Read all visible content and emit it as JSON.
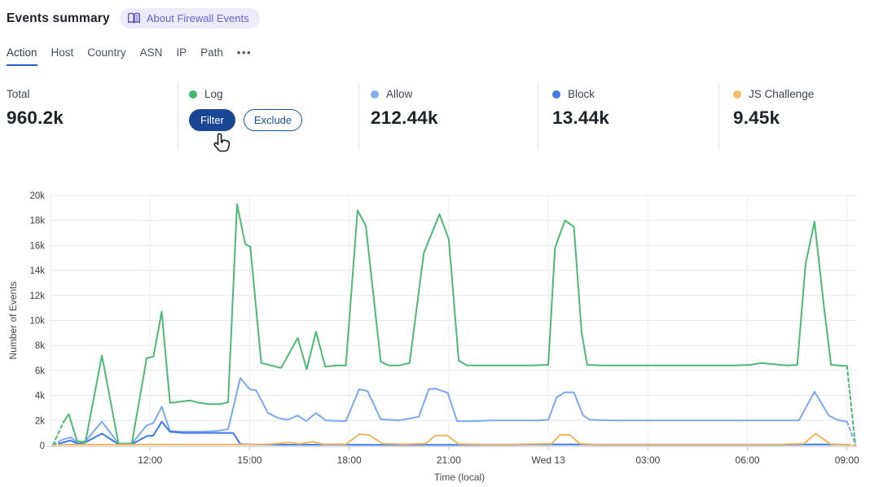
{
  "header": {
    "title": "Events summary",
    "badge_label": "About Firewall Events"
  },
  "tabs": {
    "items": [
      {
        "label": "Action",
        "active": true
      },
      {
        "label": "Host",
        "active": false
      },
      {
        "label": "Country",
        "active": false
      },
      {
        "label": "ASN",
        "active": false
      },
      {
        "label": "IP",
        "active": false
      },
      {
        "label": "Path",
        "active": false
      }
    ],
    "more_label": "•••"
  },
  "stats": {
    "cards": [
      {
        "label": "Total",
        "value": "960.2k"
      },
      {
        "label": "Log",
        "dot_color": "#3fba6d",
        "actions": {
          "filter": "Filter",
          "exclude": "Exclude"
        }
      },
      {
        "label": "Allow",
        "dot_color": "#85aef3",
        "value": "212.44k"
      },
      {
        "label": "Block",
        "dot_color": "#3d7be8",
        "value": "13.44k"
      },
      {
        "label": "JS Challenge",
        "dot_color": "#f3bc65",
        "value": "9.45k"
      }
    ]
  },
  "chart_data": {
    "type": "line",
    "title": "",
    "xlabel": "Time (local)",
    "ylabel": "Number of Events",
    "xlim": [
      9,
      33.3
    ],
    "ylim": [
      0,
      20
    ],
    "grid": true,
    "legend_position": "in-stat-cards",
    "y_ticks": [
      {
        "value": 0,
        "label": "0"
      },
      {
        "value": 2,
        "label": "2k"
      },
      {
        "value": 4,
        "label": "4k"
      },
      {
        "value": 6,
        "label": "6k"
      },
      {
        "value": 8,
        "label": "8k"
      },
      {
        "value": 10,
        "label": "10k"
      },
      {
        "value": 12,
        "label": "12k"
      },
      {
        "value": 14,
        "label": "14k"
      },
      {
        "value": 16,
        "label": "16k"
      },
      {
        "value": 18,
        "label": "18k"
      },
      {
        "value": 20,
        "label": "20k"
      }
    ],
    "x_ticks": [
      {
        "hour": 12,
        "label": "12:00"
      },
      {
        "hour": 15,
        "label": "15:00"
      },
      {
        "hour": 18,
        "label": "18:00"
      },
      {
        "hour": 21,
        "label": "21:00"
      },
      {
        "hour": 24,
        "label": "Wed 13"
      },
      {
        "hour": 27,
        "label": "03:00"
      },
      {
        "hour": 30,
        "label": "06:00"
      },
      {
        "hour": 33,
        "label": "09:00"
      }
    ],
    "units": "thousands of events",
    "series": [
      {
        "name": "Allow",
        "color": "#7aa8f4",
        "dashed_lead": [
          [
            9.07,
            0.05
          ],
          [
            9.35,
            0.45
          ]
        ],
        "points": [
          [
            9.35,
            0.45
          ],
          [
            9.6,
            0.65
          ],
          [
            9.85,
            0.2
          ],
          [
            10.05,
            0.35
          ],
          [
            10.55,
            1.9
          ],
          [
            11.05,
            0.15
          ],
          [
            11.45,
            0.15
          ],
          [
            11.9,
            1.6
          ],
          [
            12.1,
            1.8
          ],
          [
            12.35,
            3.1
          ],
          [
            12.6,
            1.15
          ],
          [
            13.0,
            1.1
          ],
          [
            13.5,
            1.1
          ],
          [
            14.0,
            1.15
          ],
          [
            14.35,
            1.3
          ],
          [
            14.72,
            5.4
          ],
          [
            15.0,
            4.5
          ],
          [
            15.2,
            4.4
          ],
          [
            15.55,
            2.6
          ],
          [
            15.85,
            2.2
          ],
          [
            16.15,
            2.05
          ],
          [
            16.45,
            2.4
          ],
          [
            16.7,
            1.95
          ],
          [
            17.0,
            2.6
          ],
          [
            17.3,
            2.0
          ],
          [
            17.9,
            1.95
          ],
          [
            18.3,
            4.5
          ],
          [
            18.55,
            4.35
          ],
          [
            18.95,
            2.1
          ],
          [
            19.5,
            2.0
          ],
          [
            20.1,
            2.3
          ],
          [
            20.4,
            4.5
          ],
          [
            20.6,
            4.55
          ],
          [
            20.97,
            4.2
          ],
          [
            21.25,
            1.95
          ],
          [
            21.7,
            1.95
          ],
          [
            22.3,
            2.0
          ],
          [
            23.0,
            2.0
          ],
          [
            23.7,
            2.0
          ],
          [
            24.0,
            2.05
          ],
          [
            24.25,
            3.85
          ],
          [
            24.5,
            4.25
          ],
          [
            24.77,
            4.25
          ],
          [
            25.05,
            2.4
          ],
          [
            25.25,
            2.05
          ],
          [
            26.0,
            2.0
          ],
          [
            27.0,
            2.0
          ],
          [
            28.0,
            2.0
          ],
          [
            29.0,
            2.0
          ],
          [
            30.0,
            2.0
          ],
          [
            31.0,
            2.0
          ],
          [
            31.55,
            2.0
          ],
          [
            32.02,
            4.3
          ],
          [
            32.45,
            2.4
          ],
          [
            32.7,
            2.05
          ],
          [
            33.0,
            1.9
          ]
        ],
        "dashed_tail": [
          [
            33.0,
            1.9
          ],
          [
            33.26,
            0.05
          ]
        ]
      },
      {
        "name": "Block",
        "color": "#3d7ce8",
        "dashed_lead": [
          [
            9.07,
            0.02
          ],
          [
            9.35,
            0.22
          ]
        ],
        "points": [
          [
            9.35,
            0.22
          ],
          [
            9.6,
            0.4
          ],
          [
            9.85,
            0.12
          ],
          [
            10.05,
            0.25
          ],
          [
            10.55,
            0.95
          ],
          [
            11.05,
            0.1
          ],
          [
            11.45,
            0.1
          ],
          [
            11.9,
            0.75
          ],
          [
            12.1,
            0.8
          ],
          [
            12.35,
            1.9
          ],
          [
            12.6,
            1.1
          ],
          [
            13.0,
            1.0
          ],
          [
            13.5,
            1.0
          ],
          [
            14.0,
            1.0
          ],
          [
            14.5,
            1.0
          ],
          [
            14.72,
            0.12
          ],
          [
            15.2,
            0.07
          ],
          [
            16.0,
            0.06
          ],
          [
            17.0,
            0.06
          ],
          [
            18.0,
            0.06
          ],
          [
            19.0,
            0.05
          ],
          [
            20.0,
            0.05
          ],
          [
            21.0,
            0.05
          ],
          [
            22.0,
            0.05
          ],
          [
            23.0,
            0.05
          ],
          [
            24.1,
            0.08
          ],
          [
            25.0,
            0.08
          ],
          [
            25.5,
            0.05
          ],
          [
            26.5,
            0.05
          ],
          [
            28.0,
            0.05
          ],
          [
            29.5,
            0.05
          ],
          [
            31.0,
            0.05
          ],
          [
            31.8,
            0.08
          ],
          [
            32.5,
            0.08
          ],
          [
            33.0,
            0.05
          ]
        ],
        "dashed_tail": [
          [
            33.0,
            0.05
          ],
          [
            33.24,
            0.02
          ]
        ]
      },
      {
        "name": "Log",
        "color": "#4aba74",
        "dashed_lead": [
          [
            9.07,
            0.05
          ],
          [
            9.4,
            1.9
          ]
        ],
        "points": [
          [
            9.4,
            1.9
          ],
          [
            9.55,
            2.5
          ],
          [
            9.8,
            0.35
          ],
          [
            10.05,
            0.25
          ],
          [
            10.55,
            7.2
          ],
          [
            11.05,
            0.15
          ],
          [
            11.45,
            0.15
          ],
          [
            11.9,
            7.0
          ],
          [
            12.1,
            7.1
          ],
          [
            12.35,
            10.7
          ],
          [
            12.6,
            3.4
          ],
          [
            12.9,
            3.5
          ],
          [
            13.2,
            3.6
          ],
          [
            13.5,
            3.4
          ],
          [
            13.8,
            3.3
          ],
          [
            14.1,
            3.3
          ],
          [
            14.35,
            3.45
          ],
          [
            14.62,
            19.3
          ],
          [
            14.87,
            16.1
          ],
          [
            15.02,
            15.9
          ],
          [
            15.35,
            6.6
          ],
          [
            15.95,
            6.2
          ],
          [
            16.45,
            8.6
          ],
          [
            16.72,
            6.1
          ],
          [
            17.0,
            9.1
          ],
          [
            17.28,
            6.3
          ],
          [
            17.6,
            6.4
          ],
          [
            17.9,
            6.4
          ],
          [
            18.25,
            18.8
          ],
          [
            18.5,
            17.6
          ],
          [
            18.95,
            6.7
          ],
          [
            19.2,
            6.4
          ],
          [
            19.5,
            6.4
          ],
          [
            19.82,
            6.6
          ],
          [
            20.25,
            15.4
          ],
          [
            20.72,
            18.5
          ],
          [
            21.0,
            16.5
          ],
          [
            21.3,
            6.8
          ],
          [
            21.55,
            6.4
          ],
          [
            22.0,
            6.4
          ],
          [
            22.5,
            6.4
          ],
          [
            23.0,
            6.4
          ],
          [
            23.5,
            6.4
          ],
          [
            24.0,
            6.45
          ],
          [
            24.2,
            15.8
          ],
          [
            24.5,
            18.0
          ],
          [
            24.77,
            17.5
          ],
          [
            25.0,
            9.1
          ],
          [
            25.17,
            6.45
          ],
          [
            25.6,
            6.4
          ],
          [
            26.1,
            6.4
          ],
          [
            26.6,
            6.4
          ],
          [
            27.1,
            6.4
          ],
          [
            27.6,
            6.4
          ],
          [
            28.1,
            6.4
          ],
          [
            28.6,
            6.4
          ],
          [
            29.1,
            6.4
          ],
          [
            29.6,
            6.4
          ],
          [
            30.1,
            6.45
          ],
          [
            30.4,
            6.6
          ],
          [
            30.8,
            6.5
          ],
          [
            31.2,
            6.4
          ],
          [
            31.5,
            6.45
          ],
          [
            31.75,
            14.5
          ],
          [
            32.02,
            17.9
          ],
          [
            32.3,
            11.2
          ],
          [
            32.52,
            6.45
          ],
          [
            33.0,
            6.35
          ]
        ],
        "dashed_tail": [
          [
            33.0,
            6.35
          ],
          [
            33.25,
            0.05
          ]
        ]
      },
      {
        "name": "JS Challenge",
        "color": "#f0b561",
        "dashed_lead": [
          [
            9.07,
            0.02
          ],
          [
            9.3,
            0.05
          ]
        ],
        "points": [
          [
            9.3,
            0.05
          ],
          [
            10.0,
            0.07
          ],
          [
            11.0,
            0.06
          ],
          [
            12.0,
            0.08
          ],
          [
            13.0,
            0.07
          ],
          [
            14.0,
            0.07
          ],
          [
            15.0,
            0.08
          ],
          [
            15.6,
            0.1
          ],
          [
            16.2,
            0.25
          ],
          [
            16.5,
            0.12
          ],
          [
            16.9,
            0.3
          ],
          [
            17.2,
            0.1
          ],
          [
            17.9,
            0.1
          ],
          [
            18.3,
            0.9
          ],
          [
            18.6,
            0.85
          ],
          [
            19.0,
            0.15
          ],
          [
            19.6,
            0.1
          ],
          [
            20.3,
            0.15
          ],
          [
            20.6,
            0.8
          ],
          [
            20.95,
            0.8
          ],
          [
            21.3,
            0.12
          ],
          [
            22.0,
            0.08
          ],
          [
            23.0,
            0.08
          ],
          [
            24.1,
            0.15
          ],
          [
            24.35,
            0.85
          ],
          [
            24.65,
            0.85
          ],
          [
            24.95,
            0.15
          ],
          [
            25.3,
            0.08
          ],
          [
            26.0,
            0.08
          ],
          [
            27.0,
            0.08
          ],
          [
            28.0,
            0.08
          ],
          [
            29.0,
            0.08
          ],
          [
            30.0,
            0.08
          ],
          [
            31.0,
            0.08
          ],
          [
            31.7,
            0.15
          ],
          [
            32.05,
            0.95
          ],
          [
            32.5,
            0.12
          ],
          [
            33.0,
            0.06
          ]
        ],
        "dashed_tail": [
          [
            33.0,
            0.06
          ],
          [
            33.24,
            0.02
          ]
        ]
      }
    ]
  }
}
